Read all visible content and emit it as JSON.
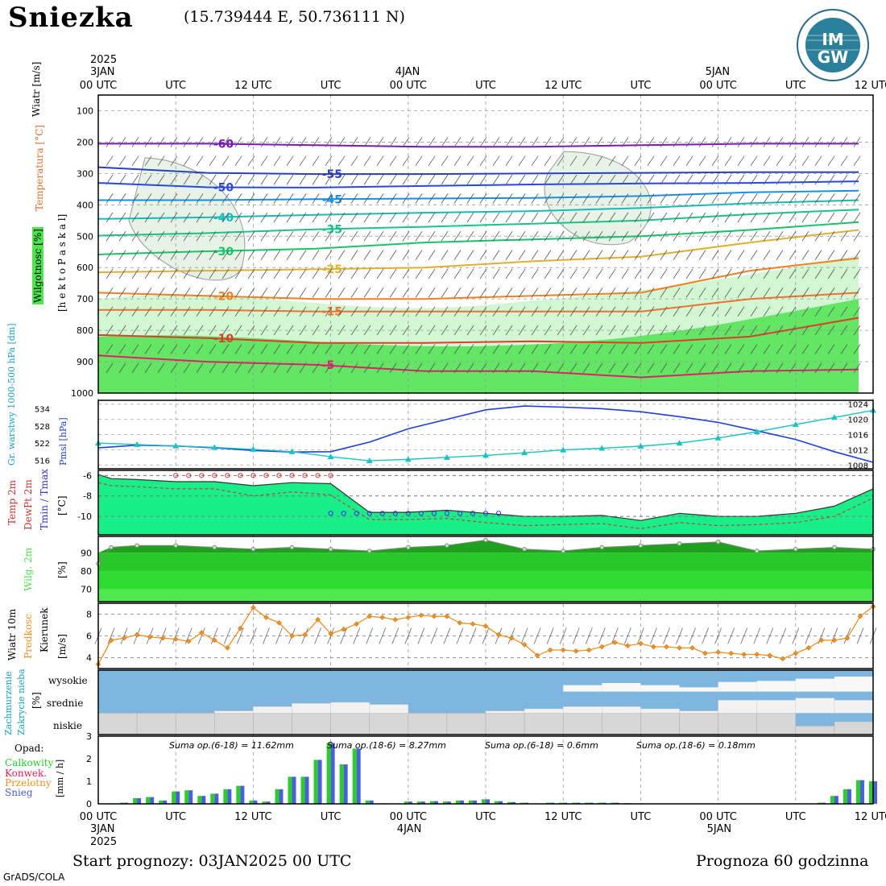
{
  "header": {
    "station": "Sniezka",
    "coords": "(15.739444 E, 50.736111 N)",
    "logo_text_top": "IM",
    "logo_text_bottom": "GW"
  },
  "time_axis": {
    "year_label": "2025",
    "day_labels": [
      "3JAN",
      "4JAN",
      "5JAN"
    ],
    "top_ticks": [
      "00 UTC",
      "UTC",
      "12 UTC",
      "UTC",
      "00 UTC",
      "UTC",
      "12 UTC",
      "UTC",
      "00 UTC",
      "UTC",
      "12 UTC"
    ],
    "bottom_ticks": [
      "00 UTC",
      "UTC",
      "12 UTC",
      "UTC",
      "00 UTC",
      "UTC",
      "12 UTC",
      "UTC",
      "00 UTC",
      "UTC",
      "12 UTC"
    ]
  },
  "panel_labels": {
    "wind_ms": "Wiatr [m/s]",
    "temperature_c": "Temperatura [°C]",
    "humidity": "Wilgotnosc [%]",
    "pressure_axis": "[h e k t o P a s k a l]",
    "thickness": "Gr. warstwy 1000-500 hPa [dm]",
    "pmsl": "Pmsl [hPa]",
    "temp2m": "Temp 2m",
    "dewpt2m": "DewPt 2m",
    "tminmax": "Tmin / Tmax",
    "tunit": "[°C]",
    "wilg2m": "Wilg. 2m",
    "pct": "[%]",
    "wind10m": "Wiatr 10m",
    "predkosc": "Predkosc",
    "kierunek": "Kierunek",
    "ms": "[m/s]",
    "zachm": "Zachmurzenie",
    "zakryc": "Zakrycie nieba",
    "cloud_pct": "[%]",
    "cloud_levels": [
      "wysokie",
      "srednie",
      "niskie"
    ],
    "opad": "Opad:",
    "calkowity": "Calkowity",
    "konwek": "Konwek.",
    "przelotny": "Przelotny",
    "snieg": "Snieg",
    "mmh": "[mm / h]"
  },
  "footer": {
    "start": "Start prognozy: 03JAN2025 00 UTC",
    "prognoza": "Prognoza 60 godzinna",
    "grads": "GrADS/COLA"
  },
  "colors": {
    "humidity_green": "#4fe34f",
    "pmsl_line": "#1e3fd8",
    "thickness_line": "#19c3c3",
    "temp_fill": "#19ef88",
    "rh_fill": "#1fa11f",
    "wind_speed": "#f09020",
    "cloud_blue": "#7db6de",
    "cloud_gray": "#d7d7d7",
    "precip_green": "#2ccc2c",
    "precip_blue": "#4a5fd8"
  },
  "chart_data": [
    {
      "type": "contour",
      "name": "Temperature / humidity cross section",
      "x_hours": [
        0,
        60
      ],
      "y_pressure_levels": [
        100,
        200,
        300,
        400,
        500,
        600,
        700,
        800,
        900,
        1000
      ],
      "ylim": [
        1000,
        50
      ],
      "isotherms": [
        {
          "label": "-60",
          "color": "#7d18b5",
          "y": [
            205,
            205,
            210,
            215,
            215,
            210,
            205,
            205
          ]
        },
        {
          "label": "-55",
          "color": "#2a3fc0",
          "y": [
            280,
            298,
            302,
            302,
            300,
            298,
            296,
            296
          ]
        },
        {
          "label": "-50",
          "color": "#2a48e0",
          "y": [
            330,
            344,
            345,
            340,
            335,
            332,
            330,
            325
          ]
        },
        {
          "label": "-45",
          "color": "#1a8ee0",
          "y": [
            385,
            385,
            382,
            380,
            378,
            372,
            360,
            355
          ]
        },
        {
          "label": "-40",
          "color": "#16bcbc",
          "y": [
            445,
            440,
            432,
            425,
            420,
            410,
            395,
            385
          ]
        },
        {
          "label": "-35",
          "color": "#19c38a",
          "y": [
            498,
            490,
            478,
            470,
            460,
            450,
            430,
            415
          ]
        },
        {
          "label": "-30",
          "color": "#19c36a",
          "y": [
            558,
            548,
            540,
            520,
            510,
            500,
            480,
            455
          ]
        },
        {
          "label": "-25",
          "color": "#e0b030",
          "y": [
            615,
            610,
            605,
            600,
            580,
            565,
            520,
            480
          ]
        },
        {
          "label": "-20",
          "color": "#f08020",
          "y": [
            680,
            690,
            700,
            700,
            690,
            680,
            610,
            570
          ]
        },
        {
          "label": "-15",
          "color": "#f07030",
          "y": [
            735,
            735,
            740,
            740,
            740,
            740,
            700,
            680
          ]
        },
        {
          "label": "-10",
          "color": "#e03c2c",
          "y": [
            815,
            825,
            840,
            840,
            835,
            840,
            820,
            760
          ]
        },
        {
          "label": "-5",
          "color": "#e0206a",
          "y": [
            880,
            900,
            910,
            930,
            930,
            950,
            930,
            925
          ]
        }
      ]
    },
    {
      "type": "line",
      "name": "Pmsl / thickness",
      "x_hours": [
        0,
        3,
        6,
        9,
        12,
        15,
        18,
        21,
        24,
        27,
        30,
        33,
        36,
        39,
        42,
        45,
        48,
        51,
        54,
        57,
        60
      ],
      "pmsl_hpa": [
        1012.5,
        1013.2,
        1013.0,
        1012.5,
        1011.8,
        1011.4,
        1011.5,
        1014.0,
        1017.5,
        1020.0,
        1022.5,
        1023.5,
        1023.2,
        1022.8,
        1022.0,
        1020.7,
        1019.2,
        1017.0,
        1014.7,
        1011.5,
        1008.7
      ],
      "thickness_dm": [
        522.0,
        521.5,
        521.0,
        520.5,
        519.8,
        519.0,
        517.2,
        515.8,
        516.3,
        517.0,
        517.7,
        518.6,
        519.6,
        520.2,
        520.9,
        522.0,
        523.8,
        526.0,
        528.5,
        531.0,
        533.5
      ],
      "pmsl_ticks": [
        1008,
        1012,
        1016,
        1020,
        1024
      ],
      "thickness_ticks": [
        516,
        522,
        528,
        534
      ]
    },
    {
      "type": "area",
      "name": "Temp 2m / DewPt 2m",
      "x_hours": [
        0,
        1,
        3,
        6,
        9,
        12,
        15,
        18,
        21,
        24,
        27,
        30,
        33,
        36,
        39,
        42,
        45,
        48,
        51,
        54,
        57,
        60
      ],
      "temp2m_c": [
        -5.9,
        -6.3,
        -6.4,
        -6.6,
        -6.6,
        -7.0,
        -6.7,
        -6.8,
        -9.6,
        -9.6,
        -9.4,
        -9.7,
        -10.0,
        -10.0,
        -9.9,
        -10.4,
        -9.7,
        -10.0,
        -10.0,
        -9.7,
        -9.0,
        -7.3
      ],
      "dewpt2m_c": [
        -6.7,
        -7.0,
        -7.1,
        -7.3,
        -7.3,
        -8.0,
        -7.6,
        -7.9,
        -10.3,
        -10.3,
        -10.2,
        -10.6,
        -10.9,
        -10.8,
        -10.7,
        -11.2,
        -10.6,
        -10.9,
        -10.8,
        -10.6,
        -10.0,
        -8.2
      ],
      "tmax_c": {
        "x": [
          6,
          18
        ],
        "y": -6.0
      },
      "tmin_c": {
        "x": [
          18,
          31
        ],
        "y": -9.7
      },
      "yticks": [
        -6,
        -8,
        -10
      ]
    },
    {
      "type": "area",
      "name": "Wilg. 2m",
      "x_hours": [
        0,
        1,
        3,
        6,
        9,
        12,
        15,
        18,
        21,
        24,
        27,
        30,
        33,
        36,
        39,
        42,
        45,
        48,
        51,
        54,
        57,
        60
      ],
      "rh_pct": [
        84,
        93,
        94,
        94,
        93,
        92,
        93,
        92,
        91,
        93,
        94,
        97,
        92,
        91,
        93,
        94,
        95,
        96,
        91,
        92,
        93,
        92
      ],
      "yticks": [
        70,
        80,
        90
      ]
    },
    {
      "type": "line",
      "name": "Wiatr 10m",
      "x_hours": [
        0,
        1,
        2,
        3,
        4,
        5,
        6,
        7,
        8,
        9,
        10,
        11,
        12,
        13,
        14,
        15,
        16,
        17,
        18,
        19,
        20,
        21,
        22,
        23,
        24,
        25,
        26,
        27,
        28,
        29,
        30,
        31,
        32,
        33,
        34,
        35,
        36,
        37,
        38,
        39,
        40,
        41,
        42,
        43,
        44,
        45,
        46,
        47,
        48,
        49,
        50,
        51,
        52,
        53,
        54,
        55,
        56,
        57,
        58,
        59,
        60
      ],
      "speed_ms": [
        3.4,
        5.6,
        5.8,
        6.1,
        5.9,
        5.8,
        5.7,
        5.5,
        6.3,
        5.6,
        4.9,
        6.7,
        8.6,
        7.7,
        7.2,
        6.0,
        6.1,
        7.5,
        6.2,
        6.6,
        7.1,
        7.8,
        7.7,
        7.5,
        7.7,
        7.9,
        7.8,
        7.8,
        7.2,
        7.1,
        6.9,
        6.1,
        5.8,
        5.2,
        4.2,
        4.7,
        4.7,
        4.6,
        4.7,
        5.0,
        5.4,
        5.1,
        5.3,
        5.0,
        5.0,
        4.9,
        4.9,
        4.4,
        4.5,
        4.4,
        4.3,
        4.3,
        4.2,
        3.9,
        4.4,
        4.9,
        5.6,
        5.6,
        5.8,
        7.8,
        8.7
      ],
      "yticks": [
        4,
        6,
        8
      ]
    },
    {
      "type": "bar",
      "name": "Zachmurzenie",
      "x_hours": [
        0,
        3,
        6,
        9,
        12,
        15,
        18,
        21,
        24,
        27,
        30,
        33,
        36,
        39,
        42,
        45,
        48,
        51,
        54,
        57,
        60
      ],
      "high_pct": [
        100,
        100,
        100,
        100,
        100,
        100,
        100,
        100,
        100,
        100,
        100,
        100,
        70,
        60,
        70,
        80,
        55,
        50,
        40,
        30,
        40
      ],
      "mid_pct": [
        0,
        0,
        0,
        10,
        30,
        45,
        50,
        40,
        0,
        0,
        10,
        20,
        30,
        30,
        20,
        10,
        60,
        60,
        70,
        60,
        20
      ],
      "low_pct": [
        100,
        100,
        100,
        100,
        100,
        100,
        100,
        100,
        100,
        100,
        100,
        100,
        100,
        100,
        100,
        100,
        100,
        100,
        40,
        60,
        20
      ]
    },
    {
      "type": "bar",
      "name": "Opad",
      "annotations": [
        "Suma op.(6-18) = 11.62mm",
        "Suma op.(18-6) = 8.27mm",
        "Suma op.(6-18) = 0.6mm",
        "Suma op.(18-6) = 0.18mm"
      ],
      "x_hours": [
        0,
        1,
        2,
        3,
        4,
        5,
        6,
        7,
        8,
        9,
        10,
        11,
        12,
        13,
        14,
        15,
        16,
        17,
        18,
        19,
        20,
        21,
        22,
        23,
        24,
        25,
        26,
        27,
        28,
        29,
        30,
        31,
        32,
        33,
        34,
        35,
        36,
        37,
        38,
        39,
        40,
        41,
        42,
        43,
        44,
        45,
        46,
        47,
        48,
        49,
        50,
        51,
        52,
        53,
        54,
        55,
        56,
        57,
        58,
        59,
        60
      ],
      "total_mm_h": [
        0,
        0.02,
        0.05,
        0.25,
        0.3,
        0.15,
        0.55,
        0.6,
        0.35,
        0.45,
        0.65,
        0.8,
        0.15,
        0.1,
        0.65,
        1.2,
        1.2,
        1.95,
        2.7,
        1.75,
        2.45,
        0.15,
        0.02,
        0.0,
        0.1,
        0.1,
        0.12,
        0.1,
        0.15,
        0.15,
        0.2,
        0.12,
        0.08,
        0.05,
        0.0,
        0.05,
        0.05,
        0.05,
        0.05,
        0.05,
        0.05,
        0.03,
        0.02,
        0.0,
        0.0,
        0.0,
        0.0,
        0.0,
        0.0,
        0.0,
        0.0,
        0.0,
        0.0,
        0.0,
        0.0,
        0.0,
        0.05,
        0.35,
        0.65,
        1.05,
        1.0
      ],
      "yticks": [
        0,
        1,
        2,
        3
      ]
    }
  ]
}
